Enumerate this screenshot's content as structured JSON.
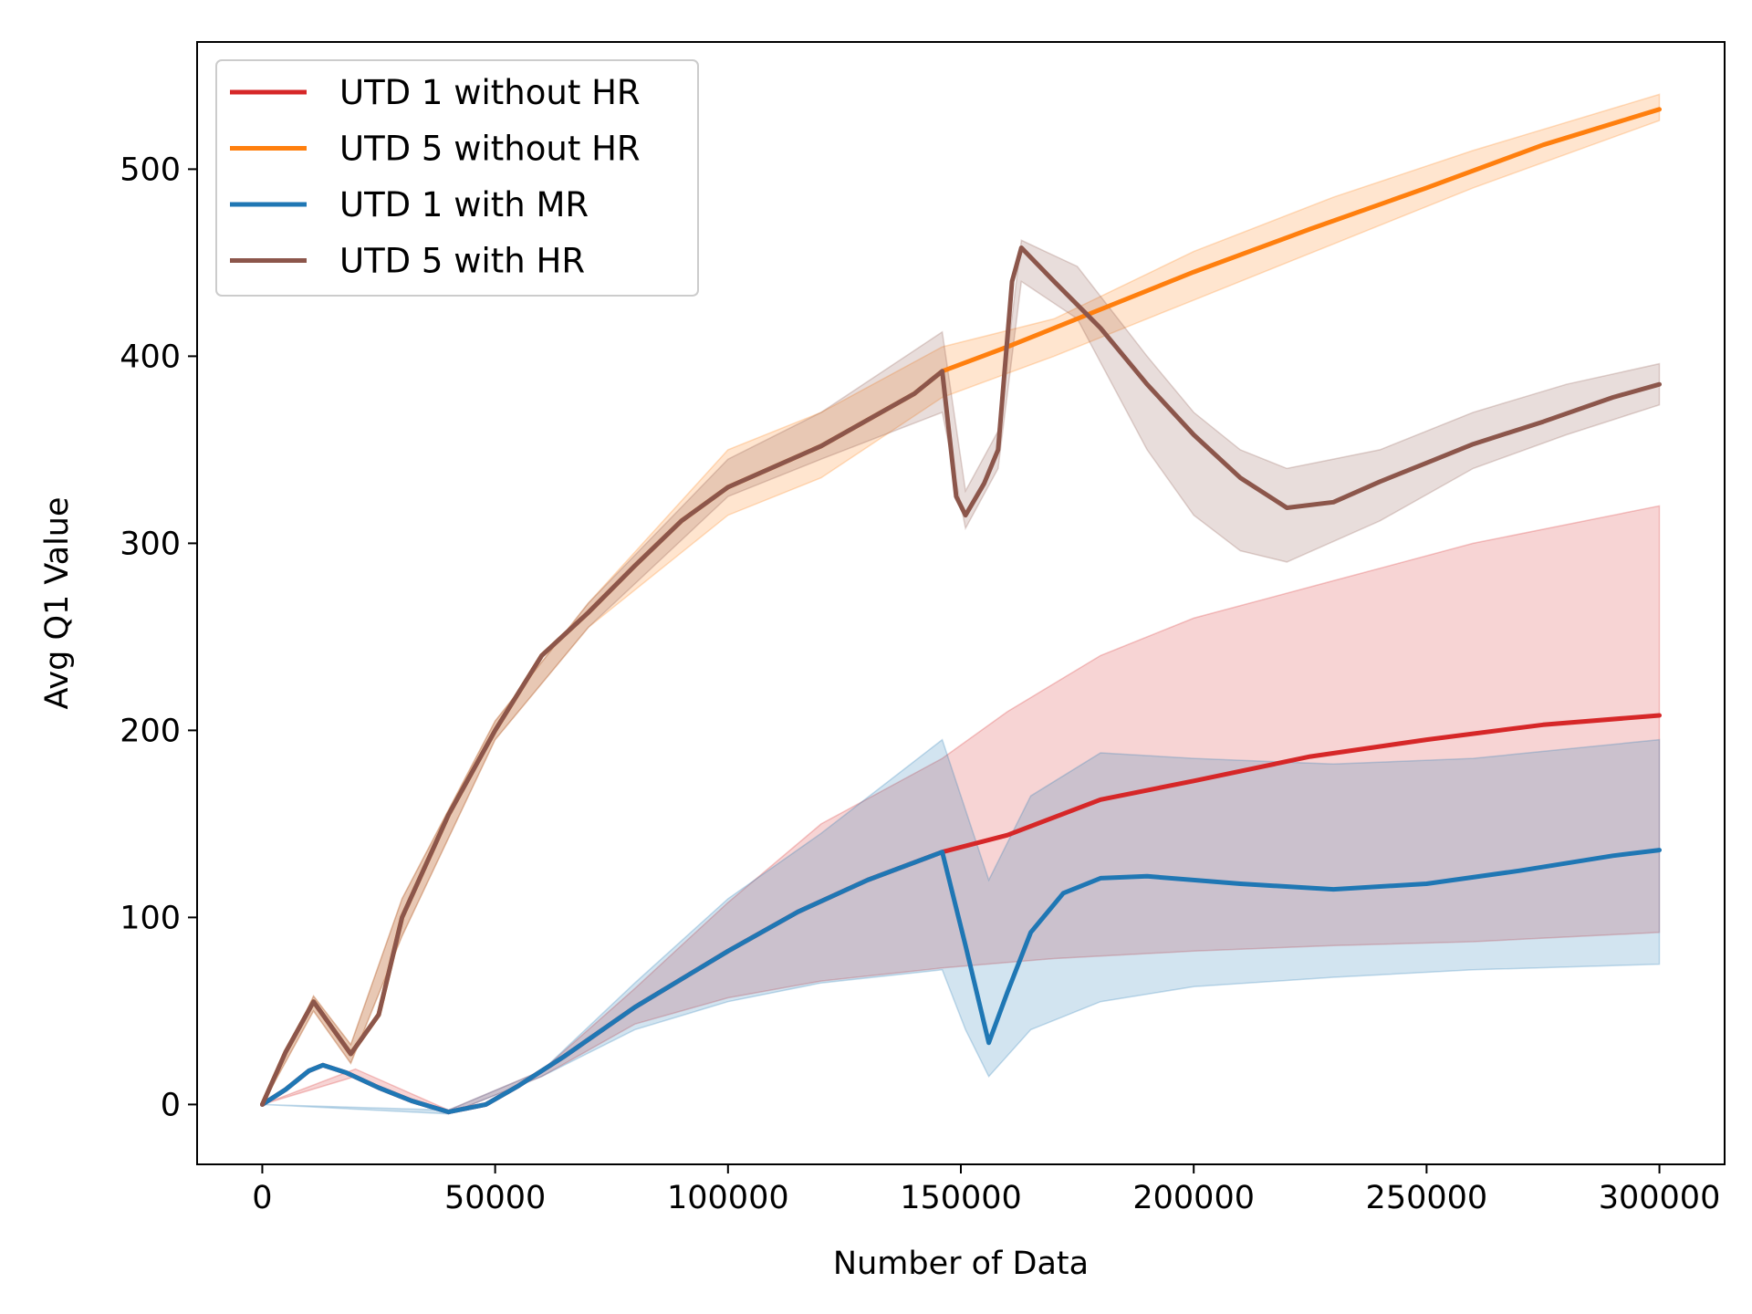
{
  "chart_data": {
    "type": "line",
    "xlabel": "Number of Data",
    "ylabel": "Avg Q1 Value",
    "xlim": [
      -14000,
      314000
    ],
    "ylim": [
      -32,
      568
    ],
    "xticks": [
      0,
      50000,
      100000,
      150000,
      200000,
      250000,
      300000
    ],
    "xtick_labels": [
      "0",
      "50000",
      "100000",
      "150000",
      "200000",
      "250000",
      "300000"
    ],
    "yticks": [
      0,
      100,
      200,
      300,
      400,
      500
    ],
    "ytick_labels": [
      "0",
      "100",
      "200",
      "300",
      "400",
      "500"
    ],
    "grid": false,
    "legend_position": "top-left",
    "series": [
      {
        "name": "UTD 1 without HR",
        "color": "#d62728",
        "points": [
          [
            0,
            0
          ],
          [
            5000,
            8
          ],
          [
            10000,
            18
          ],
          [
            13000,
            21
          ],
          [
            18000,
            17
          ],
          [
            25000,
            9
          ],
          [
            32000,
            2
          ],
          [
            40000,
            -4
          ],
          [
            48000,
            0
          ],
          [
            55000,
            10
          ],
          [
            65000,
            26
          ],
          [
            80000,
            52
          ],
          [
            100000,
            82
          ],
          [
            115000,
            103
          ],
          [
            130000,
            120
          ],
          [
            146000,
            135
          ],
          [
            160000,
            144
          ],
          [
            180000,
            163
          ],
          [
            200000,
            173
          ],
          [
            225000,
            186
          ],
          [
            250000,
            195
          ],
          [
            275000,
            203
          ],
          [
            300000,
            208
          ]
        ],
        "band_lower": [
          [
            0,
            0
          ],
          [
            20000,
            15
          ],
          [
            40000,
            -5
          ],
          [
            60000,
            15
          ],
          [
            80000,
            43
          ],
          [
            100000,
            57
          ],
          [
            120000,
            66
          ],
          [
            146000,
            73
          ],
          [
            170000,
            78
          ],
          [
            200000,
            82
          ],
          [
            230000,
            85
          ],
          [
            260000,
            87
          ],
          [
            300000,
            92
          ]
        ],
        "band_upper": [
          [
            0,
            0
          ],
          [
            20000,
            19
          ],
          [
            40000,
            -3
          ],
          [
            60000,
            18
          ],
          [
            80000,
            62
          ],
          [
            100000,
            108
          ],
          [
            120000,
            150
          ],
          [
            146000,
            185
          ],
          [
            160000,
            210
          ],
          [
            180000,
            240
          ],
          [
            200000,
            260
          ],
          [
            230000,
            280
          ],
          [
            260000,
            300
          ],
          [
            300000,
            320
          ]
        ]
      },
      {
        "name": "UTD 5 without HR",
        "color": "#ff7f0e",
        "points": [
          [
            0,
            0
          ],
          [
            5000,
            28
          ],
          [
            11000,
            55
          ],
          [
            19000,
            27
          ],
          [
            25000,
            48
          ],
          [
            30000,
            100
          ],
          [
            40000,
            155
          ],
          [
            50000,
            200
          ],
          [
            60000,
            240
          ],
          [
            70000,
            263
          ],
          [
            80000,
            288
          ],
          [
            90000,
            312
          ],
          [
            100000,
            330
          ],
          [
            120000,
            352
          ],
          [
            140000,
            380
          ],
          [
            146000,
            392
          ],
          [
            160000,
            405
          ],
          [
            180000,
            425
          ],
          [
            200000,
            445
          ],
          [
            225000,
            468
          ],
          [
            250000,
            490
          ],
          [
            275000,
            513
          ],
          [
            300000,
            532
          ]
        ],
        "band_lower": [
          [
            0,
            0
          ],
          [
            11000,
            50
          ],
          [
            19000,
            22
          ],
          [
            30000,
            90
          ],
          [
            50000,
            195
          ],
          [
            70000,
            255
          ],
          [
            100000,
            315
          ],
          [
            120000,
            335
          ],
          [
            146000,
            378
          ],
          [
            170000,
            400
          ],
          [
            200000,
            430
          ],
          [
            230000,
            460
          ],
          [
            260000,
            490
          ],
          [
            300000,
            526
          ]
        ],
        "band_upper": [
          [
            0,
            0
          ],
          [
            11000,
            58
          ],
          [
            19000,
            32
          ],
          [
            30000,
            110
          ],
          [
            50000,
            205
          ],
          [
            70000,
            268
          ],
          [
            100000,
            350
          ],
          [
            120000,
            370
          ],
          [
            146000,
            405
          ],
          [
            170000,
            420
          ],
          [
            200000,
            456
          ],
          [
            230000,
            485
          ],
          [
            260000,
            510
          ],
          [
            300000,
            540
          ]
        ]
      },
      {
        "name": "UTD 1 with MR",
        "color": "#1f77b4",
        "points": [
          [
            0,
            0
          ],
          [
            5000,
            8
          ],
          [
            10000,
            18
          ],
          [
            13000,
            21
          ],
          [
            18000,
            17
          ],
          [
            25000,
            9
          ],
          [
            32000,
            2
          ],
          [
            40000,
            -4
          ],
          [
            48000,
            0
          ],
          [
            55000,
            10
          ],
          [
            65000,
            26
          ],
          [
            80000,
            52
          ],
          [
            100000,
            82
          ],
          [
            115000,
            103
          ],
          [
            130000,
            120
          ],
          [
            146000,
            135
          ],
          [
            151000,
            85
          ],
          [
            156000,
            33
          ],
          [
            160000,
            60
          ],
          [
            165000,
            92
          ],
          [
            172000,
            113
          ],
          [
            180000,
            121
          ],
          [
            190000,
            122
          ],
          [
            210000,
            118
          ],
          [
            230000,
            115
          ],
          [
            250000,
            118
          ],
          [
            270000,
            125
          ],
          [
            290000,
            133
          ],
          [
            300000,
            136
          ]
        ],
        "band_lower": [
          [
            0,
            0
          ],
          [
            40000,
            -5
          ],
          [
            60000,
            15
          ],
          [
            80000,
            40
          ],
          [
            100000,
            55
          ],
          [
            120000,
            65
          ],
          [
            146000,
            72
          ],
          [
            151000,
            40
          ],
          [
            156000,
            15
          ],
          [
            165000,
            40
          ],
          [
            180000,
            55
          ],
          [
            200000,
            63
          ],
          [
            230000,
            68
          ],
          [
            260000,
            72
          ],
          [
            300000,
            75
          ]
        ],
        "band_upper": [
          [
            0,
            0
          ],
          [
            40000,
            -3
          ],
          [
            60000,
            18
          ],
          [
            80000,
            65
          ],
          [
            100000,
            110
          ],
          [
            120000,
            145
          ],
          [
            146000,
            195
          ],
          [
            156000,
            120
          ],
          [
            165000,
            165
          ],
          [
            180000,
            188
          ],
          [
            200000,
            185
          ],
          [
            230000,
            182
          ],
          [
            260000,
            185
          ],
          [
            300000,
            195
          ]
        ]
      },
      {
        "name": "UTD 5 with HR",
        "color": "#8c564b",
        "points": [
          [
            0,
            0
          ],
          [
            5000,
            28
          ],
          [
            11000,
            55
          ],
          [
            19000,
            27
          ],
          [
            25000,
            48
          ],
          [
            30000,
            100
          ],
          [
            40000,
            155
          ],
          [
            50000,
            200
          ],
          [
            60000,
            240
          ],
          [
            70000,
            263
          ],
          [
            80000,
            288
          ],
          [
            90000,
            312
          ],
          [
            100000,
            330
          ],
          [
            120000,
            352
          ],
          [
            140000,
            380
          ],
          [
            146000,
            392
          ],
          [
            149000,
            325
          ],
          [
            151000,
            315
          ],
          [
            155000,
            332
          ],
          [
            158000,
            350
          ],
          [
            161000,
            440
          ],
          [
            163000,
            458
          ],
          [
            170000,
            440
          ],
          [
            180000,
            415
          ],
          [
            190000,
            385
          ],
          [
            200000,
            358
          ],
          [
            210000,
            335
          ],
          [
            220000,
            319
          ],
          [
            230000,
            322
          ],
          [
            240000,
            333
          ],
          [
            250000,
            343
          ],
          [
            260000,
            353
          ],
          [
            275000,
            365
          ],
          [
            290000,
            378
          ],
          [
            300000,
            385
          ]
        ],
        "band_lower": [
          [
            0,
            0
          ],
          [
            11000,
            50
          ],
          [
            19000,
            22
          ],
          [
            30000,
            90
          ],
          [
            50000,
            195
          ],
          [
            70000,
            255
          ],
          [
            100000,
            325
          ],
          [
            120000,
            345
          ],
          [
            146000,
            370
          ],
          [
            151000,
            308
          ],
          [
            158000,
            340
          ],
          [
            163000,
            440
          ],
          [
            175000,
            420
          ],
          [
            190000,
            350
          ],
          [
            200000,
            315
          ],
          [
            210000,
            296
          ],
          [
            220000,
            290
          ],
          [
            240000,
            312
          ],
          [
            260000,
            340
          ],
          [
            280000,
            358
          ],
          [
            300000,
            374
          ]
        ],
        "band_upper": [
          [
            0,
            0
          ],
          [
            11000,
            58
          ],
          [
            19000,
            32
          ],
          [
            30000,
            110
          ],
          [
            50000,
            205
          ],
          [
            70000,
            268
          ],
          [
            100000,
            345
          ],
          [
            120000,
            370
          ],
          [
            146000,
            413
          ],
          [
            151000,
            328
          ],
          [
            158000,
            360
          ],
          [
            163000,
            462
          ],
          [
            175000,
            448
          ],
          [
            190000,
            400
          ],
          [
            200000,
            370
          ],
          [
            210000,
            350
          ],
          [
            220000,
            340
          ],
          [
            240000,
            350
          ],
          [
            260000,
            370
          ],
          [
            280000,
            385
          ],
          [
            300000,
            396
          ]
        ]
      }
    ]
  }
}
